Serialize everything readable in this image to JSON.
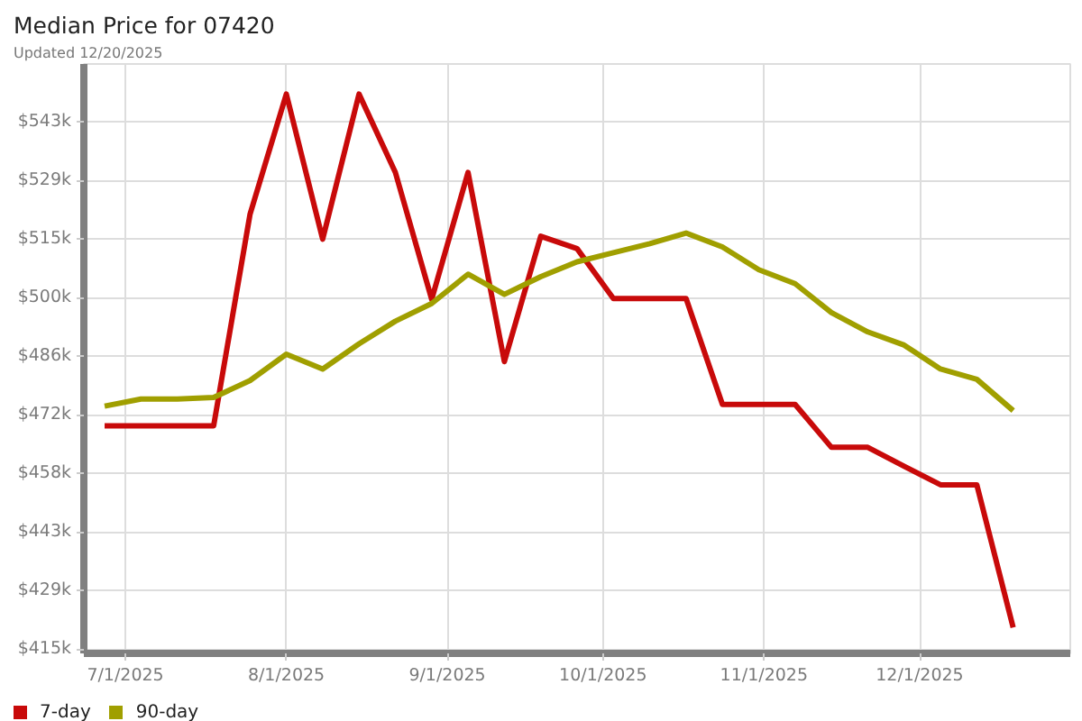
{
  "chart_data": {
    "type": "line",
    "title": "Median Price for 07420",
    "subtitle": "Updated 12/20/2025",
    "x": [
      "2025-06-27",
      "2025-07-04",
      "2025-07-11",
      "2025-07-18",
      "2025-07-25",
      "2025-08-01",
      "2025-08-08",
      "2025-08-15",
      "2025-08-22",
      "2025-08-29",
      "2025-09-05",
      "2025-09-12",
      "2025-09-19",
      "2025-09-26",
      "2025-10-03",
      "2025-10-10",
      "2025-10-17",
      "2025-10-24",
      "2025-10-31",
      "2025-11-07",
      "2025-11-14",
      "2025-11-21",
      "2025-11-28",
      "2025-12-05",
      "2025-12-12",
      "2025-12-19"
    ],
    "series": [
      {
        "name": "7-day",
        "color": "#c80a0a",
        "values": [
          469200,
          469200,
          469200,
          469200,
          520500,
          549700,
          514500,
          549700,
          530700,
          499900,
          530700,
          484800,
          515200,
          512200,
          500100,
          500100,
          500100,
          474400,
          474400,
          474400,
          464000,
          464000,
          459400,
          454900,
          454900,
          420300
        ]
      },
      {
        "name": "90-day",
        "color": "#a09f00",
        "values": [
          474000,
          475700,
          475700,
          476100,
          480200,
          486600,
          483000,
          489100,
          494600,
          498900,
          506000,
          501100,
          505400,
          509000,
          511200,
          513400,
          516000,
          512600,
          507100,
          503700,
          496700,
          492000,
          488800,
          483000,
          480500,
          472900
        ]
      }
    ],
    "xlim": [
      "2025-06-23",
      "2025-12-30"
    ],
    "xticks": [
      {
        "value": "2025-07-01",
        "label": "7/1/2025"
      },
      {
        "value": "2025-08-01",
        "label": "8/1/2025"
      },
      {
        "value": "2025-09-01",
        "label": "9/1/2025"
      },
      {
        "value": "2025-10-01",
        "label": "10/1/2025"
      },
      {
        "value": "2025-11-01",
        "label": "11/1/2025"
      },
      {
        "value": "2025-12-01",
        "label": "12/1/2025"
      }
    ],
    "ylim": [
      414000,
      557000
    ],
    "yticks": [
      {
        "value": 415000,
        "label": "$415k"
      },
      {
        "value": 429222,
        "label": "$429k"
      },
      {
        "value": 443444,
        "label": "$443k"
      },
      {
        "value": 457667,
        "label": "$458k"
      },
      {
        "value": 471889,
        "label": "$472k"
      },
      {
        "value": 486111,
        "label": "$486k"
      },
      {
        "value": 500333,
        "label": "$500k"
      },
      {
        "value": 514556,
        "label": "$515k"
      },
      {
        "value": 528778,
        "label": "$529k"
      },
      {
        "value": 543000,
        "label": "$543k"
      }
    ],
    "grid": true,
    "legend": "bottom left",
    "line_style": "solid"
  }
}
